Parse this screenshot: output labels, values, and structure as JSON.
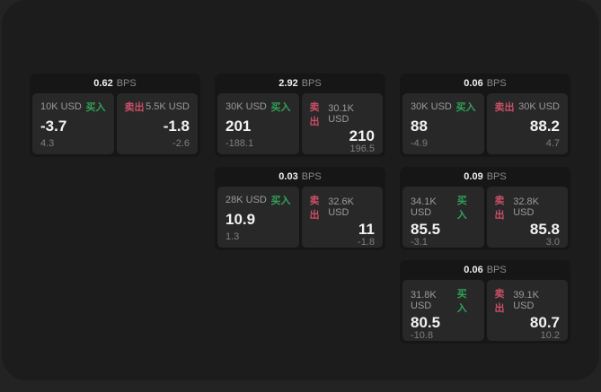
{
  "labels": {
    "bps": "BPS",
    "buy": "买入",
    "sell": "卖出"
  },
  "colors": {
    "buy_green": "#30a257",
    "sell_red": "#c94f68"
  },
  "cards": [
    {
      "bps": "0.62",
      "buy": {
        "amount": "10K USD",
        "value": "-3.7",
        "delta": "4.3"
      },
      "sell": {
        "amount": "5.5K USD",
        "value": "-1.8",
        "delta": "-2.6"
      }
    },
    {
      "bps": "2.92",
      "buy": {
        "amount": "30K USD",
        "value": "201",
        "delta": "-188.1"
      },
      "sell": {
        "amount": "30.1K USD",
        "value": "210",
        "delta": "196.5"
      }
    },
    {
      "bps": "0.06",
      "buy": {
        "amount": "30K USD",
        "value": "88",
        "delta": "-4.9"
      },
      "sell": {
        "amount": "30K USD",
        "value": "88.2",
        "delta": "4.7"
      }
    },
    {
      "bps": "0.03",
      "buy": {
        "amount": "28K USD",
        "value": "10.9",
        "delta": "1.3"
      },
      "sell": {
        "amount": "32.6K USD",
        "value": "11",
        "delta": "-1.8"
      }
    },
    {
      "bps": "0.09",
      "buy": {
        "amount": "34.1K USD",
        "value": "85.5",
        "delta": "-3.1"
      },
      "sell": {
        "amount": "32.8K USD",
        "value": "85.8",
        "delta": "3.0"
      }
    },
    {
      "bps": "0.06",
      "buy": {
        "amount": "31.8K USD",
        "value": "80.5",
        "delta": "-10.8"
      },
      "sell": {
        "amount": "39.1K USD",
        "value": "80.7",
        "delta": "10.2"
      }
    }
  ]
}
